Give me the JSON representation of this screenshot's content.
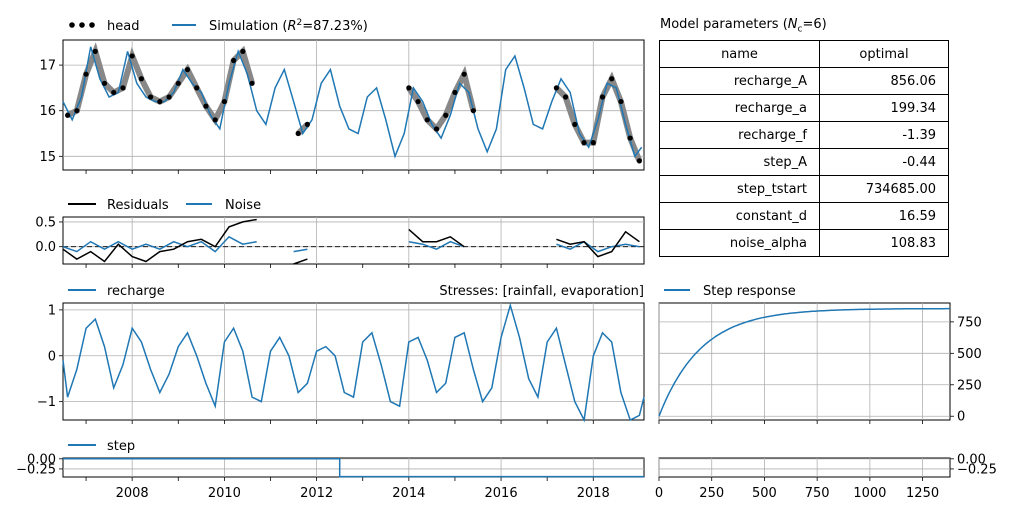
{
  "chart_data": [
    {
      "type": "line",
      "panel": "head-simulation",
      "legend_placement": "top-left",
      "series": [
        {
          "name": "head",
          "style": "black-dots"
        },
        {
          "name": "Simulation (R²=87.23%)",
          "color": "#1f77b4"
        }
      ],
      "sim_points": [
        [
          2006.5,
          16.2
        ],
        [
          2006.7,
          15.8
        ],
        [
          2006.9,
          16.3
        ],
        [
          2007.1,
          17.4
        ],
        [
          2007.3,
          16.7
        ],
        [
          2007.5,
          16.3
        ],
        [
          2007.7,
          16.4
        ],
        [
          2007.9,
          17.3
        ],
        [
          2008.1,
          16.6
        ],
        [
          2008.3,
          16.3
        ],
        [
          2008.5,
          16.2
        ],
        [
          2008.7,
          16.2
        ],
        [
          2008.9,
          16.4
        ],
        [
          2009.1,
          16.9
        ],
        [
          2009.3,
          16.6
        ],
        [
          2009.5,
          16.4
        ],
        [
          2009.7,
          15.9
        ],
        [
          2009.9,
          15.6
        ],
        [
          2010.1,
          16.6
        ],
        [
          2010.3,
          17.3
        ],
        [
          2010.5,
          16.8
        ],
        [
          2010.7,
          16.0
        ],
        [
          2010.9,
          15.7
        ],
        [
          2011.1,
          16.5
        ],
        [
          2011.3,
          16.9
        ],
        [
          2011.5,
          16.2
        ],
        [
          2011.7,
          15.5
        ],
        [
          2011.9,
          15.8
        ],
        [
          2012.1,
          16.6
        ],
        [
          2012.3,
          16.9
        ],
        [
          2012.5,
          16.1
        ],
        [
          2012.7,
          15.6
        ],
        [
          2012.9,
          15.5
        ],
        [
          2013.1,
          16.3
        ],
        [
          2013.3,
          16.5
        ],
        [
          2013.5,
          15.8
        ],
        [
          2013.7,
          15.0
        ],
        [
          2013.9,
          15.5
        ],
        [
          2014.1,
          16.5
        ],
        [
          2014.3,
          16.2
        ],
        [
          2014.5,
          15.7
        ],
        [
          2014.7,
          15.4
        ],
        [
          2014.9,
          15.9
        ],
        [
          2015.1,
          16.6
        ],
        [
          2015.3,
          16.4
        ],
        [
          2015.5,
          15.6
        ],
        [
          2015.7,
          15.1
        ],
        [
          2015.9,
          15.6
        ],
        [
          2016.1,
          16.9
        ],
        [
          2016.3,
          17.2
        ],
        [
          2016.5,
          16.5
        ],
        [
          2016.7,
          15.7
        ],
        [
          2016.9,
          15.6
        ],
        [
          2017.1,
          16.2
        ],
        [
          2017.3,
          16.7
        ],
        [
          2017.5,
          16.4
        ],
        [
          2017.7,
          15.5
        ],
        [
          2017.9,
          15.2
        ],
        [
          2018.1,
          15.8
        ],
        [
          2018.3,
          16.6
        ],
        [
          2018.5,
          16.5
        ],
        [
          2018.7,
          15.7
        ],
        [
          2018.9,
          15.0
        ],
        [
          2019.05,
          15.2
        ]
      ],
      "head_points": [
        [
          2006.6,
          15.9
        ],
        [
          2006.8,
          16.0
        ],
        [
          2007.0,
          16.8
        ],
        [
          2007.2,
          17.3
        ],
        [
          2007.4,
          16.6
        ],
        [
          2007.6,
          16.4
        ],
        [
          2007.8,
          16.5
        ],
        [
          2008.0,
          17.2
        ],
        [
          2008.2,
          16.7
        ],
        [
          2008.4,
          16.3
        ],
        [
          2008.6,
          16.2
        ],
        [
          2008.8,
          16.3
        ],
        [
          2009.0,
          16.6
        ],
        [
          2009.2,
          16.9
        ],
        [
          2009.4,
          16.5
        ],
        [
          2009.6,
          16.1
        ],
        [
          2009.8,
          15.8
        ],
        [
          2010.0,
          16.2
        ],
        [
          2010.2,
          17.1
        ],
        [
          2010.4,
          17.3
        ],
        [
          2010.6,
          16.6
        ],
        [
          2011.6,
          15.5
        ],
        [
          2011.8,
          15.7
        ],
        [
          2014.0,
          16.5
        ],
        [
          2014.2,
          16.2
        ],
        [
          2014.4,
          15.8
        ],
        [
          2014.6,
          15.6
        ],
        [
          2014.8,
          15.9
        ],
        [
          2015.0,
          16.4
        ],
        [
          2015.2,
          16.8
        ],
        [
          2015.4,
          16.0
        ],
        [
          2017.2,
          16.5
        ],
        [
          2017.4,
          16.3
        ],
        [
          2017.6,
          15.7
        ],
        [
          2017.8,
          15.3
        ],
        [
          2018.0,
          15.3
        ],
        [
          2018.2,
          16.3
        ],
        [
          2018.4,
          16.7
        ],
        [
          2018.6,
          16.2
        ],
        [
          2018.8,
          15.4
        ],
        [
          2019.0,
          14.9
        ]
      ],
      "xlim": [
        2006.5,
        2019.1
      ],
      "ylim": [
        14.7,
        17.55
      ],
      "yticks": [
        "15",
        "16",
        "17"
      ],
      "xticks_years": [
        2008,
        2010,
        2012,
        2014,
        2016,
        2018
      ],
      "grid": true
    },
    {
      "type": "line",
      "panel": "residuals",
      "legend_placement": "top-left",
      "series": [
        {
          "name": "Residuals",
          "color": "#000000"
        },
        {
          "name": "Noise",
          "color": "#1f77b4"
        }
      ],
      "residual_points": [
        [
          2006.5,
          -0.05
        ],
        [
          2006.8,
          -0.25
        ],
        [
          2007.1,
          -0.1
        ],
        [
          2007.4,
          -0.3
        ],
        [
          2007.7,
          0.05
        ],
        [
          2008.0,
          -0.2
        ],
        [
          2008.3,
          -0.3
        ],
        [
          2008.6,
          -0.1
        ],
        [
          2008.9,
          -0.05
        ],
        [
          2009.2,
          0.1
        ],
        [
          2009.5,
          0.15
        ],
        [
          2009.8,
          0.0
        ],
        [
          2010.1,
          0.4
        ],
        [
          2010.4,
          0.5
        ],
        [
          2010.7,
          0.55
        ],
        [
          2011.5,
          -0.35
        ],
        [
          2011.8,
          -0.25
        ],
        [
          2014.0,
          0.35
        ],
        [
          2014.3,
          0.1
        ],
        [
          2014.6,
          0.1
        ],
        [
          2014.9,
          0.2
        ],
        [
          2015.2,
          0.0
        ],
        [
          2017.2,
          0.15
        ],
        [
          2017.5,
          0.05
        ],
        [
          2017.8,
          0.1
        ],
        [
          2018.1,
          -0.2
        ],
        [
          2018.4,
          -0.1
        ],
        [
          2018.7,
          0.3
        ],
        [
          2019.0,
          0.1
        ]
      ],
      "noise_points": [
        [
          2006.5,
          0.0
        ],
        [
          2006.8,
          -0.1
        ],
        [
          2007.1,
          0.1
        ],
        [
          2007.4,
          -0.05
        ],
        [
          2007.7,
          0.1
        ],
        [
          2008.0,
          -0.05
        ],
        [
          2008.3,
          0.05
        ],
        [
          2008.6,
          -0.05
        ],
        [
          2008.9,
          0.1
        ],
        [
          2009.2,
          0.0
        ],
        [
          2009.5,
          0.1
        ],
        [
          2009.8,
          -0.1
        ],
        [
          2010.1,
          0.2
        ],
        [
          2010.4,
          0.05
        ],
        [
          2010.7,
          0.1
        ],
        [
          2011.5,
          -0.1
        ],
        [
          2011.8,
          -0.05
        ],
        [
          2014.0,
          0.1
        ],
        [
          2014.3,
          0.05
        ],
        [
          2014.6,
          -0.05
        ],
        [
          2014.9,
          0.1
        ],
        [
          2015.2,
          0.0
        ],
        [
          2017.2,
          0.05
        ],
        [
          2017.5,
          -0.05
        ],
        [
          2017.8,
          0.1
        ],
        [
          2018.1,
          -0.1
        ],
        [
          2018.4,
          0.0
        ],
        [
          2018.7,
          0.05
        ],
        [
          2019.0,
          0.0
        ]
      ],
      "xlim": [
        2006.5,
        2019.1
      ],
      "ylim": [
        -0.35,
        0.6
      ],
      "yticks": [
        "−0.0",
        "0.0",
        "0.5"
      ],
      "ytick_values": [
        0.0,
        0.5
      ],
      "zero_line": "dashed",
      "grid": true
    },
    {
      "type": "line",
      "panel": "recharge",
      "legend_placement": "top-left",
      "series": [
        {
          "name": "recharge",
          "color": "#1f77b4"
        }
      ],
      "annotation": "Stresses: [rainfall, evaporation]",
      "points": [
        [
          2006.5,
          -0.1
        ],
        [
          2006.6,
          -0.9
        ],
        [
          2006.8,
          -0.3
        ],
        [
          2007.0,
          0.6
        ],
        [
          2007.2,
          0.8
        ],
        [
          2007.4,
          0.2
        ],
        [
          2007.6,
          -0.7
        ],
        [
          2007.8,
          -0.2
        ],
        [
          2008.0,
          0.6
        ],
        [
          2008.2,
          0.3
        ],
        [
          2008.4,
          -0.3
        ],
        [
          2008.6,
          -0.8
        ],
        [
          2008.8,
          -0.4
        ],
        [
          2009.0,
          0.2
        ],
        [
          2009.2,
          0.5
        ],
        [
          2009.4,
          0.0
        ],
        [
          2009.6,
          -0.6
        ],
        [
          2009.8,
          -1.1
        ],
        [
          2010.0,
          0.3
        ],
        [
          2010.2,
          0.6
        ],
        [
          2010.4,
          0.1
        ],
        [
          2010.6,
          -0.9
        ],
        [
          2010.8,
          -1.0
        ],
        [
          2011.0,
          0.1
        ],
        [
          2011.2,
          0.4
        ],
        [
          2011.4,
          0.0
        ],
        [
          2011.6,
          -0.8
        ],
        [
          2011.8,
          -0.6
        ],
        [
          2012.0,
          0.1
        ],
        [
          2012.2,
          0.2
        ],
        [
          2012.4,
          0.0
        ],
        [
          2012.6,
          -0.8
        ],
        [
          2012.8,
          -0.9
        ],
        [
          2013.0,
          0.3
        ],
        [
          2013.2,
          0.5
        ],
        [
          2013.4,
          -0.2
        ],
        [
          2013.6,
          -1.0
        ],
        [
          2013.8,
          -1.1
        ],
        [
          2014.0,
          0.3
        ],
        [
          2014.2,
          0.4
        ],
        [
          2014.4,
          -0.1
        ],
        [
          2014.6,
          -0.8
        ],
        [
          2014.8,
          -0.6
        ],
        [
          2015.0,
          0.4
        ],
        [
          2015.2,
          0.5
        ],
        [
          2015.4,
          -0.3
        ],
        [
          2015.6,
          -1.0
        ],
        [
          2015.8,
          -0.7
        ],
        [
          2016.0,
          0.4
        ],
        [
          2016.2,
          1.1
        ],
        [
          2016.4,
          0.4
        ],
        [
          2016.6,
          -0.5
        ],
        [
          2016.8,
          -0.9
        ],
        [
          2017.0,
          0.3
        ],
        [
          2017.2,
          0.6
        ],
        [
          2017.4,
          -0.2
        ],
        [
          2017.6,
          -1.0
        ],
        [
          2017.8,
          -1.4
        ],
        [
          2018.0,
          0.0
        ],
        [
          2018.2,
          0.5
        ],
        [
          2018.4,
          0.3
        ],
        [
          2018.6,
          -0.8
        ],
        [
          2018.8,
          -1.4
        ],
        [
          2019.0,
          -1.3
        ],
        [
          2019.1,
          -0.9
        ]
      ],
      "xlim": [
        2006.5,
        2019.1
      ],
      "ylim": [
        -1.4,
        1.15
      ],
      "yticks": [
        "−1",
        "0",
        "1"
      ],
      "ytick_values": [
        -1,
        0,
        1
      ],
      "grid": true
    },
    {
      "type": "line",
      "panel": "step-response",
      "legend_placement": "top-left",
      "series": [
        {
          "name": "Step response",
          "color": "#1f77b4"
        }
      ],
      "asymptote": 856.06,
      "time_scale": 199.34,
      "xlim": [
        0,
        1380
      ],
      "ylim": [
        -30,
        900
      ],
      "yticks": [
        "0",
        "250",
        "500",
        "750"
      ],
      "ytick_values": [
        0,
        250,
        500,
        750
      ],
      "y_axis_side": "right",
      "grid": true
    },
    {
      "type": "line",
      "panel": "step",
      "legend_placement": "top-left",
      "series": [
        {
          "name": "step",
          "color": "#1f77b4"
        }
      ],
      "points": [
        [
          2006.5,
          0.0
        ],
        [
          2012.5,
          0.0
        ],
        [
          2012.5,
          -0.44
        ],
        [
          2019.1,
          -0.44
        ]
      ],
      "xlim": [
        2006.5,
        2019.1
      ],
      "ylim": [
        -0.45,
        0.02
      ],
      "yticks": [
        "0.00",
        "−0.25"
      ],
      "ytick_values": [
        0.0,
        -0.25
      ],
      "xticks": [
        "2008",
        "2010",
        "2012",
        "2014",
        "2016",
        "2018"
      ],
      "grid": true
    },
    {
      "type": "line",
      "panel": "step-response-block",
      "series": [],
      "value": -0.44,
      "xlim": [
        0,
        1380
      ],
      "ylim": [
        -0.45,
        0.02
      ],
      "yticks": [
        "0.00",
        "−0.25"
      ],
      "ytick_values": [
        0.0,
        -0.25
      ],
      "xticks": [
        "0",
        "250",
        "500",
        "750",
        "1000",
        "1250"
      ],
      "y_axis_side": "right",
      "grid": true
    },
    {
      "type": "table",
      "panel": "model-parameters",
      "title": "Model parameters (Nc=6)",
      "columns": [
        "name",
        "optimal"
      ],
      "rows": [
        [
          "recharge_A",
          "856.06"
        ],
        [
          "recharge_a",
          "199.34"
        ],
        [
          "recharge_f",
          "-1.39"
        ],
        [
          "step_A",
          "-0.44"
        ],
        [
          "step_tstart",
          "734685.00"
        ],
        [
          "constant_d",
          "16.59"
        ],
        [
          "noise_alpha",
          "108.83"
        ]
      ]
    }
  ],
  "labels": {
    "head_legend": "head",
    "sim_legend_prefix": "Simulation (",
    "sim_legend_r2": "R",
    "sim_legend_suffix": "=87.23%)",
    "residuals_legend": "Residuals",
    "noise_legend": "Noise",
    "recharge_legend": "recharge",
    "stresses_label": "Stresses: [rainfall, evaporation]",
    "step_response_legend": "Step response",
    "step_legend": "step",
    "params_title_prefix": "Model parameters (",
    "params_title_n": "N",
    "params_title_sub": "c",
    "params_title_suffix": "=6)"
  },
  "colors": {
    "series": "#1f77b4",
    "grid": "#b0b0b0",
    "head": "#000000",
    "obs_band": "#888888"
  }
}
